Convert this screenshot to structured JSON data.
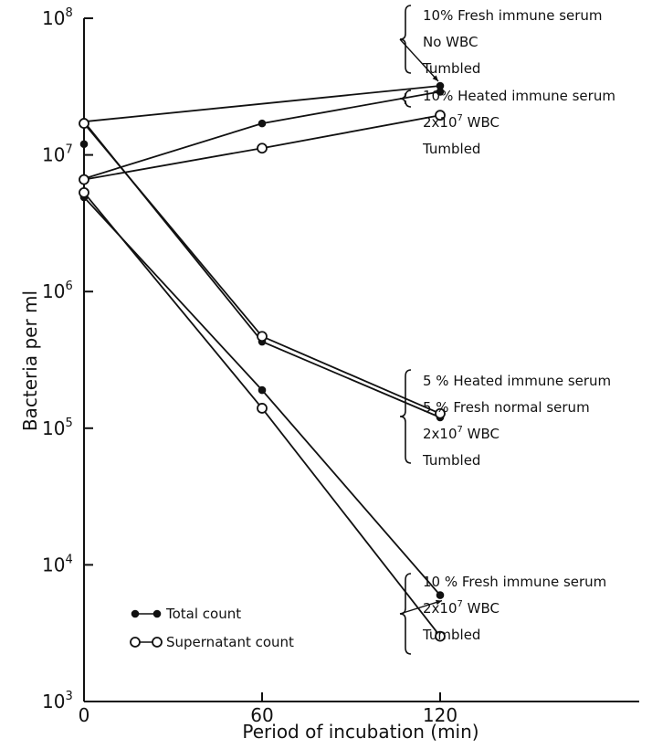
{
  "chart_data": {
    "type": "line",
    "xlabel": "Period of incubation (min)",
    "ylabel": "Bacteria per ml",
    "y_scale": "log",
    "xlim": [
      0,
      240
    ],
    "ylim": [
      1000,
      100000000
    ],
    "x_ticks": [
      {
        "value": 0,
        "label": "0"
      },
      {
        "value": 60,
        "label": "60"
      },
      {
        "value": 120,
        "label": "120"
      }
    ],
    "y_ticks": [
      {
        "value": 1000,
        "base": "10",
        "exp": "3"
      },
      {
        "value": 10000,
        "base": "10",
        "exp": "4"
      },
      {
        "value": 100000,
        "base": "10",
        "exp": "5"
      },
      {
        "value": 1000000,
        "base": "10",
        "exp": "6"
      },
      {
        "value": 10000000,
        "base": "10",
        "exp": "7"
      },
      {
        "value": 100000000,
        "base": "10",
        "exp": "8"
      }
    ],
    "grid": false,
    "legend": {
      "placement": "lower-left",
      "entries": [
        {
          "label": "Total count",
          "marker": "filled"
        },
        {
          "label": "Supernatant count",
          "marker": "open"
        }
      ]
    },
    "series": [
      {
        "marker": "filled",
        "x": [
          0,
          120
        ],
        "y": [
          17500000,
          32000000
        ]
      },
      {
        "marker": "filled",
        "x": [
          0,
          60,
          120
        ],
        "y": [
          6700000,
          17000000,
          29000000
        ]
      },
      {
        "marker": "open",
        "x": [
          0,
          60,
          120
        ],
        "y": [
          6600000,
          11200000,
          19500000
        ]
      },
      {
        "marker": "filled",
        "x": [
          0,
          60,
          120
        ],
        "y": [
          17500000,
          430000,
          120000
        ]
      },
      {
        "marker": "open",
        "x": [
          0,
          60,
          120
        ],
        "y": [
          17000000,
          470000,
          128000
        ]
      },
      {
        "marker": "filled",
        "x": [
          0,
          60,
          120
        ],
        "y": [
          4900000,
          190000,
          6000
        ]
      },
      {
        "marker": "open",
        "x": [
          0,
          60,
          120
        ],
        "y": [
          5300000,
          140000,
          3000
        ]
      }
    ],
    "extra_points": [
      {
        "marker": "filled",
        "x": 0,
        "y": 12000000
      }
    ],
    "annotations": [
      {
        "lines": [
          {
            "text": "10% Fresh immune serum"
          },
          {
            "text": "No WBC"
          },
          {
            "text": "Tumbled"
          }
        ]
      },
      {
        "lines": [
          {
            "text": "10% Heated immune serum"
          },
          {
            "text": "2x10",
            "sup": "7",
            "after": " WBC"
          },
          {
            "text": "Tumbled"
          }
        ]
      },
      {
        "lines": [
          {
            "text": "5 % Heated immune serum"
          },
          {
            "text": "5 % Fresh normal serum"
          },
          {
            "text": "2x10",
            "sup": "7",
            "after": " WBC"
          },
          {
            "text": "Tumbled"
          }
        ]
      },
      {
        "lines": [
          {
            "text": "10 % Fresh immune serum"
          },
          {
            "text": "2x10",
            "sup": "7",
            "after": " WBC"
          },
          {
            "text": "Tumbled"
          }
        ]
      }
    ]
  }
}
